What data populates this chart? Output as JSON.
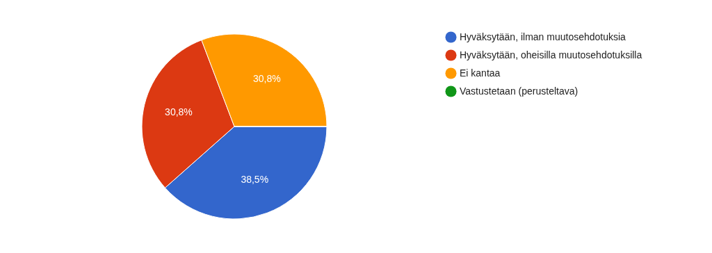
{
  "chart_data": {
    "type": "pie",
    "categories": [
      "Hyväksytään, ilman muutosehdotuksia",
      "Hyväksytään, oheisilla muutosehdotuksilla",
      "Ei kantaa",
      "Vastustetaan (perusteltava)"
    ],
    "values": [
      38.5,
      30.8,
      30.8,
      0
    ],
    "colors": [
      "#3366cc",
      "#dc3912",
      "#ff9900",
      "#109618"
    ],
    "value_labels": [
      "38,5%",
      "30,8%",
      "30,8%",
      null
    ],
    "legend": "right"
  }
}
